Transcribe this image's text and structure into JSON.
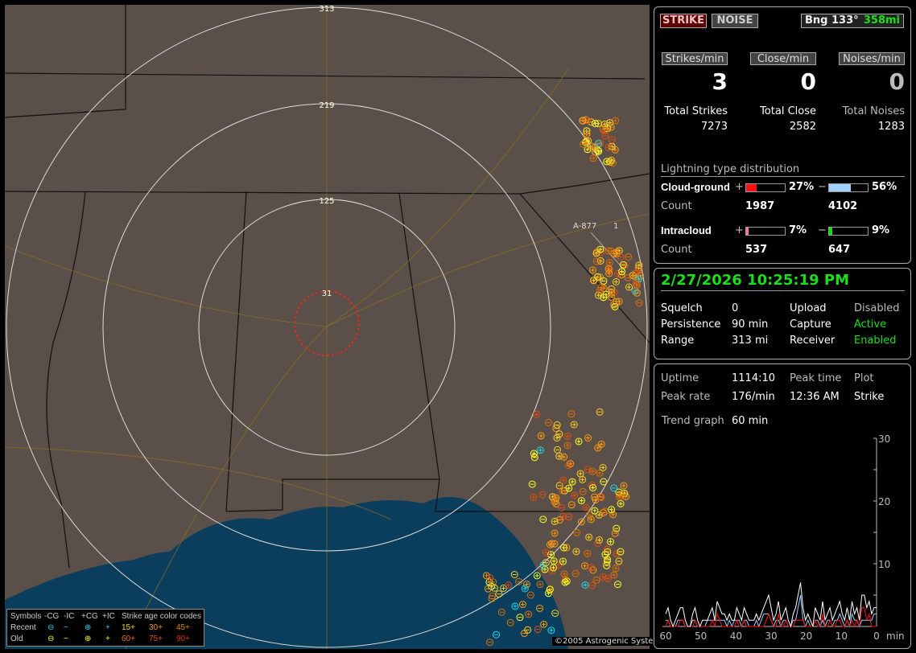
{
  "map": {
    "range_labels": [
      "313",
      "219",
      "125",
      "31"
    ],
    "station_label": "A-877",
    "station_count": "1",
    "copyright": "©2005 Astrogenic Systems",
    "legend": {
      "header": [
        "Symbols",
        "-CG",
        "-IC",
        "+CG",
        "+IC",
        "Strike age color codes"
      ],
      "recent_label": "Recent",
      "old_label": "Old",
      "recent_ages": [
        "15+",
        "30+",
        "45+"
      ],
      "old_ages": [
        "60+",
        "75+",
        "90+"
      ],
      "recent_color": "#22d8e8",
      "old_color": "#ffff22",
      "age_colors": [
        "#ffd020",
        "#ff9a10",
        "#e08a00",
        "#e07000",
        "#e05010",
        "#e03010"
      ]
    }
  },
  "top": {
    "strike_button": "STRIKE",
    "noise_button": "NOISE",
    "bearing": "Bng 133°",
    "distance": "358mi",
    "rates": [
      {
        "label": "Strikes/min",
        "value": "3",
        "total_label": "Total Strikes",
        "total": "7273"
      },
      {
        "label": "Close/min",
        "value": "0",
        "total_label": "Total Close",
        "total": "2582"
      },
      {
        "label": "Noises/min",
        "value": "0",
        "total_label": "Total Noises",
        "total": "1283"
      }
    ],
    "dist_title": "Lightning type distribution",
    "cg_label": "Cloud-ground",
    "ic_label": "Intracloud",
    "count_label": "Count",
    "plus": "+",
    "minus": "−",
    "cg_pos": {
      "pct": "27%",
      "value": 27,
      "count": "1987",
      "color": "#ff1010"
    },
    "cg_neg": {
      "pct": "56%",
      "value": 56,
      "count": "4102",
      "color": "#9fd0ff"
    },
    "ic_pos": {
      "pct": "7%",
      "value": 7,
      "count": "537",
      "color": "#ff70b0"
    },
    "ic_neg": {
      "pct": "9%",
      "value": 9,
      "count": "647",
      "color": "#10e010"
    }
  },
  "status": {
    "datetime": "2/27/2026 10:25:19 PM",
    "rows": [
      {
        "k": "Squelch",
        "v": "0",
        "k2": "Upload",
        "v2": "Disabled"
      },
      {
        "k": "Persistence",
        "v": "90 min",
        "k2": "Capture",
        "v2": "Active"
      },
      {
        "k": "Range",
        "v": "313 mi",
        "k2": "Receiver",
        "v2": "Enabled"
      }
    ]
  },
  "stats": {
    "uptime_label": "Uptime",
    "uptime": "1114:10",
    "peak_time_label": "Peak time",
    "plot_label": "Plot",
    "peak_rate_label": "Peak rate",
    "peak_rate": "176/min",
    "peak_time": "12:36 AM",
    "plot": "Strike",
    "trend_label": "Trend graph",
    "trend": "60 min",
    "y_ticks": [
      "30",
      "20",
      "10"
    ],
    "x_ticks": [
      "60",
      "50",
      "40",
      "30",
      "20",
      "10",
      "0"
    ],
    "x_unit": "min",
    "trend_total": [
      2,
      3,
      1,
      0,
      1,
      2,
      3,
      3,
      1,
      0,
      0,
      2,
      3,
      1,
      0,
      1,
      1,
      1,
      2,
      3,
      1,
      4,
      3,
      2,
      2,
      1,
      2,
      1,
      1,
      3,
      2,
      1,
      3,
      2,
      1,
      1,
      1,
      2,
      1,
      2,
      3,
      4,
      5,
      3,
      1,
      2,
      4,
      1,
      2,
      3,
      1,
      0,
      2,
      3,
      5,
      7,
      3,
      1,
      2,
      1,
      0,
      3,
      2,
      1,
      4,
      1,
      2,
      3,
      1,
      2,
      3,
      4,
      2,
      1,
      3,
      1,
      4,
      2,
      3,
      1,
      5,
      5,
      3,
      4,
      2,
      3,
      3
    ],
    "trend_neg_cg": [
      1,
      1,
      0,
      0,
      0,
      1,
      1,
      1,
      0,
      0,
      0,
      1,
      1,
      0,
      0,
      0,
      0,
      1,
      1,
      1,
      1,
      1,
      1,
      1,
      1,
      0,
      1,
      0,
      1,
      1,
      1,
      0,
      1,
      1,
      0,
      0,
      0,
      1,
      0,
      1,
      2,
      2,
      2,
      1,
      0,
      1,
      1,
      0,
      1,
      1,
      0,
      0,
      1,
      1,
      3,
      5,
      1,
      0,
      1,
      0,
      0,
      1,
      1,
      0,
      1,
      0,
      1,
      1,
      0,
      1,
      1,
      2,
      1,
      0,
      1,
      0,
      2,
      1,
      1,
      0,
      1,
      1,
      1,
      1,
      1,
      2,
      2
    ]
  }
}
